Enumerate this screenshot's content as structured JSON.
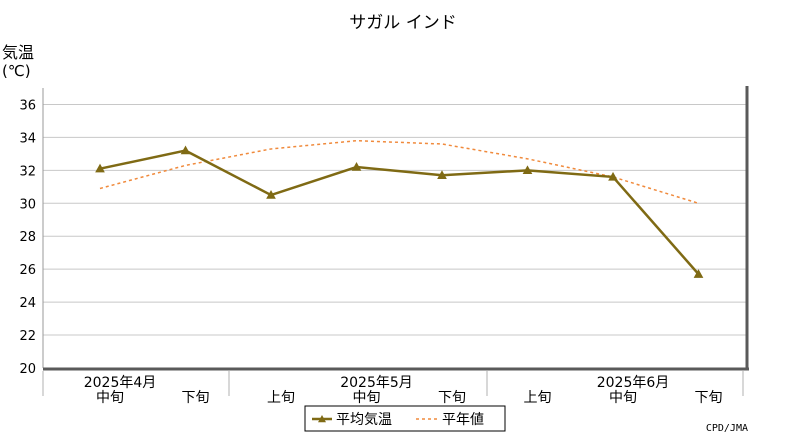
{
  "chart_data": {
    "type": "line",
    "title": "サガル インド",
    "ylabel_line1": "気温",
    "ylabel_line2": "(℃)",
    "ylim": [
      20,
      37
    ],
    "yticks": [
      20,
      22,
      24,
      26,
      28,
      30,
      32,
      34,
      36
    ],
    "grid": true,
    "categories": [
      "中旬",
      "下旬",
      "上旬",
      "中旬",
      "下旬",
      "上旬",
      "中旬",
      "下旬"
    ],
    "month_labels": [
      {
        "label": "2025年4月",
        "at_index": 0
      },
      {
        "label": "2025年5月",
        "at_index": 3
      },
      {
        "label": "2025年6月",
        "at_index": 6
      }
    ],
    "series": [
      {
        "name": "平均気温",
        "color": "#7f6a14",
        "style": "solid-marker",
        "values": [
          32.1,
          33.2,
          30.5,
          32.2,
          31.7,
          32.0,
          31.6,
          25.7
        ]
      },
      {
        "name": "平年値",
        "color": "#f08a3c",
        "style": "dashed",
        "values": [
          30.9,
          32.3,
          33.3,
          33.8,
          33.6,
          32.7,
          31.6,
          30.0
        ]
      }
    ],
    "legend_position": "bottom-center",
    "credit": "CPD/JMA"
  }
}
